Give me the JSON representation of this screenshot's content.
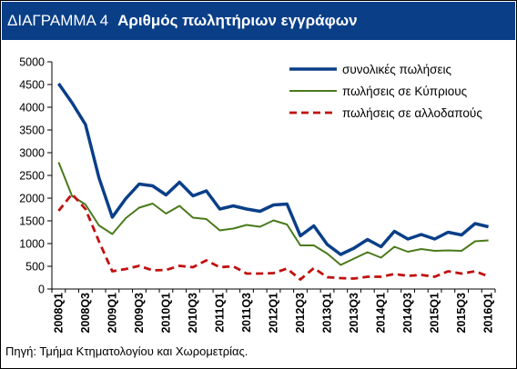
{
  "header": {
    "label": "ΔΙΑΓΡΑΜΜΑ 4",
    "title": "Αριθμός πωλητήριων εγγράφων"
  },
  "source": "Πηγή: Τμήμα Κτηματολογίου και Χωρομετρίας.",
  "colors": {
    "header_bg": "#0a3f88",
    "total": "#0a3f88",
    "cypriots": "#4a7a1c",
    "foreigners": "#c0100f"
  },
  "chart_data": {
    "type": "line",
    "title": "",
    "xlabel": "",
    "ylabel": "",
    "ylim": [
      0,
      5000
    ],
    "yticks": [
      0,
      500,
      1000,
      1500,
      2000,
      2500,
      3000,
      3500,
      4000,
      4500,
      5000
    ],
    "grid": false,
    "legend_position": "top-right",
    "x": [
      "2008Q1",
      "2008Q2",
      "2008Q3",
      "2008Q4",
      "2009Q1",
      "2009Q2",
      "2009Q3",
      "2009Q4",
      "2010Q1",
      "2010Q2",
      "2010Q3",
      "2010Q4",
      "2011Q1",
      "2011Q2",
      "2011Q3",
      "2011Q4",
      "2012Q1",
      "2012Q2",
      "2012Q3",
      "2012Q4",
      "2013Q1",
      "2013Q2",
      "2013Q3",
      "2013Q4",
      "2014Q1",
      "2014Q2",
      "2014Q3",
      "2014Q4",
      "2015Q1",
      "2015Q2",
      "2015Q3",
      "2015Q4",
      "2016Q1"
    ],
    "xtick_labels": [
      "2008Q1",
      "2008Q3",
      "2009Q1",
      "2009Q3",
      "2010Q1",
      "2010Q3",
      "2011Q1",
      "2011Q3",
      "2012Q1",
      "2012Q3",
      "2013Q1",
      "2013Q3",
      "2014Q1",
      "2014Q3",
      "2015Q1",
      "2015Q3",
      "2016Q1"
    ],
    "series": [
      {
        "name": "συνολικές πωλήσεις",
        "color": "#0a3f88",
        "style": "solid-thick",
        "values": [
          4520,
          4100,
          3620,
          2450,
          1580,
          1990,
          2310,
          2270,
          2070,
          2350,
          2050,
          2160,
          1760,
          1830,
          1760,
          1710,
          1850,
          1870,
          1170,
          1390,
          980,
          760,
          900,
          1090,
          930,
          1270,
          1100,
          1200,
          1100,
          1250,
          1190,
          1440,
          1370
        ]
      },
      {
        "name": "πωλήσεις σε Κύπριους",
        "color": "#4a7a1c",
        "style": "solid-thin",
        "values": [
          2790,
          2050,
          1860,
          1400,
          1210,
          1560,
          1790,
          1880,
          1660,
          1830,
          1570,
          1540,
          1290,
          1330,
          1410,
          1370,
          1510,
          1420,
          960,
          960,
          780,
          530,
          670,
          810,
          690,
          930,
          820,
          880,
          840,
          850,
          840,
          1050,
          1070
        ]
      },
      {
        "name": "πωλήσεις σε αλλοδαπούς",
        "color": "#c0100f",
        "style": "dashed",
        "values": [
          1720,
          2090,
          1760,
          1050,
          390,
          440,
          510,
          410,
          420,
          510,
          480,
          630,
          480,
          500,
          340,
          340,
          350,
          450,
          210,
          460,
          260,
          240,
          230,
          270,
          270,
          330,
          290,
          310,
          270,
          390,
          340,
          390,
          280
        ]
      }
    ]
  }
}
